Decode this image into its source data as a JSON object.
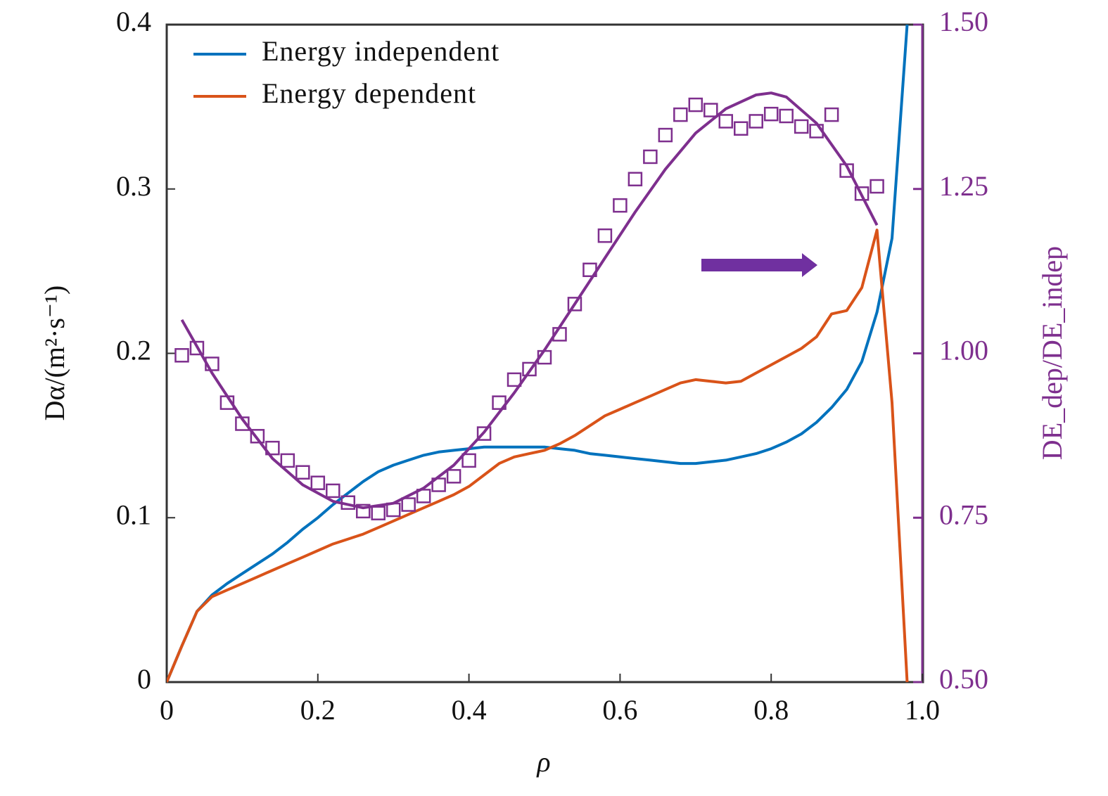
{
  "chart_data": {
    "type": "line",
    "xlabel": "ρ",
    "ylabel": "Dα/(m²·s⁻¹)",
    "y2label": "DE_dep/DE_indep",
    "xlim": [
      0,
      1.0
    ],
    "xticks": [
      0,
      0.2,
      0.4,
      0.6,
      0.8,
      {
        "value": 1.0,
        "label": "1.0"
      }
    ],
    "ylim": [
      0,
      0.4
    ],
    "yticks": [
      0,
      0.1,
      0.2,
      0.3,
      0.4
    ],
    "y2lim": [
      0.5,
      1.5
    ],
    "y2ticks": [
      {
        "value": 0.5,
        "label": "0.50"
      },
      {
        "value": 0.75,
        "label": "0.75"
      },
      {
        "value": 1.0,
        "label": "1.00"
      },
      {
        "value": 1.25,
        "label": "1.25"
      },
      {
        "value": 1.5,
        "label": "1.50"
      }
    ],
    "y2color": "#7e2f8e",
    "legend": "upper left",
    "series": [
      {
        "name": "Energy independent",
        "color": "#0072bd",
        "x": [
          0,
          0.02,
          0.04,
          0.06,
          0.08,
          0.1,
          0.12,
          0.14,
          0.16,
          0.18,
          0.2,
          0.22,
          0.24,
          0.26,
          0.28,
          0.3,
          0.32,
          0.34,
          0.36,
          0.38,
          0.4,
          0.42,
          0.44,
          0.46,
          0.48,
          0.5,
          0.52,
          0.54,
          0.56,
          0.58,
          0.6,
          0.62,
          0.64,
          0.66,
          0.68,
          0.7,
          0.72,
          0.74,
          0.76,
          0.78,
          0.8,
          0.82,
          0.84,
          0.86,
          0.88,
          0.9,
          0.92,
          0.94,
          0.96,
          0.98
        ],
        "values": [
          0,
          0.022,
          0.043,
          0.053,
          0.06,
          0.066,
          0.072,
          0.078,
          0.085,
          0.093,
          0.1,
          0.108,
          0.115,
          0.122,
          0.128,
          0.132,
          0.135,
          0.138,
          0.14,
          0.141,
          0.142,
          0.143,
          0.143,
          0.143,
          0.143,
          0.143,
          0.142,
          0.141,
          0.139,
          0.138,
          0.137,
          0.136,
          0.135,
          0.134,
          0.133,
          0.133,
          0.134,
          0.135,
          0.137,
          0.139,
          0.142,
          0.146,
          0.151,
          0.158,
          0.167,
          0.178,
          0.195,
          0.225,
          0.27,
          0.4
        ]
      },
      {
        "name": "Energy dependent",
        "color": "#d95319",
        "x": [
          0,
          0.02,
          0.04,
          0.06,
          0.08,
          0.1,
          0.12,
          0.14,
          0.16,
          0.18,
          0.2,
          0.22,
          0.24,
          0.26,
          0.28,
          0.3,
          0.32,
          0.34,
          0.36,
          0.38,
          0.4,
          0.42,
          0.44,
          0.46,
          0.48,
          0.5,
          0.52,
          0.54,
          0.56,
          0.58,
          0.6,
          0.62,
          0.64,
          0.66,
          0.68,
          0.7,
          0.72,
          0.74,
          0.76,
          0.78,
          0.8,
          0.82,
          0.84,
          0.86,
          0.88,
          0.9,
          0.92,
          0.94,
          0.96,
          0.98
        ],
        "values": [
          0,
          0.022,
          0.043,
          0.052,
          0.056,
          0.06,
          0.064,
          0.068,
          0.072,
          0.076,
          0.08,
          0.084,
          0.087,
          0.09,
          0.094,
          0.098,
          0.102,
          0.106,
          0.11,
          0.114,
          0.119,
          0.126,
          0.133,
          0.137,
          0.139,
          0.141,
          0.145,
          0.15,
          0.156,
          0.162,
          0.166,
          0.17,
          0.174,
          0.178,
          0.182,
          0.184,
          0.183,
          0.182,
          0.183,
          0.188,
          0.193,
          0.198,
          0.203,
          0.21,
          0.224,
          0.226,
          0.24,
          0.275,
          0.17,
          0
        ]
      },
      {
        "color": "#7e2f8e",
        "axis": "y2",
        "marker": "square",
        "x": [
          0.02,
          0.04,
          0.06,
          0.08,
          0.1,
          0.12,
          0.14,
          0.16,
          0.18,
          0.2,
          0.22,
          0.24,
          0.26,
          0.28,
          0.3,
          0.32,
          0.34,
          0.36,
          0.38,
          0.4,
          0.42,
          0.44,
          0.46,
          0.48,
          0.5,
          0.52,
          0.54,
          0.56,
          0.58,
          0.6,
          0.62,
          0.64,
          0.66,
          0.68,
          0.7,
          0.72,
          0.74,
          0.76,
          0.78,
          0.8,
          0.82,
          0.84,
          0.86,
          0.88,
          0.9,
          0.92,
          0.94
        ],
        "values": [
          0.997,
          1.008,
          0.984,
          0.925,
          0.893,
          0.874,
          0.856,
          0.837,
          0.819,
          0.803,
          0.791,
          0.773,
          0.76,
          0.757,
          0.762,
          0.77,
          0.783,
          0.8,
          0.813,
          0.837,
          0.878,
          0.925,
          0.96,
          0.976,
          0.994,
          1.029,
          1.075,
          1.127,
          1.179,
          1.225,
          1.265,
          1.299,
          1.332,
          1.363,
          1.378,
          1.37,
          1.353,
          1.342,
          1.353,
          1.364,
          1.361,
          1.345,
          1.338,
          1.363,
          1.278,
          1.243,
          1.254
        ]
      },
      {
        "color": "#7e2f8e",
        "axis": "y2",
        "x": [
          0.02,
          0.06,
          0.1,
          0.14,
          0.18,
          0.22,
          0.26,
          0.3,
          0.34,
          0.38,
          0.42,
          0.46,
          0.5,
          0.54,
          0.58,
          0.62,
          0.66,
          0.7,
          0.74,
          0.78,
          0.8,
          0.82,
          0.86,
          0.9,
          0.94
        ],
        "values": [
          1.051,
          0.97,
          0.9,
          0.84,
          0.8,
          0.775,
          0.765,
          0.772,
          0.795,
          0.83,
          0.88,
          0.94,
          1.005,
          1.075,
          1.145,
          1.215,
          1.28,
          1.335,
          1.372,
          1.393,
          1.396,
          1.39,
          1.35,
          1.285,
          1.195
        ]
      }
    ]
  }
}
